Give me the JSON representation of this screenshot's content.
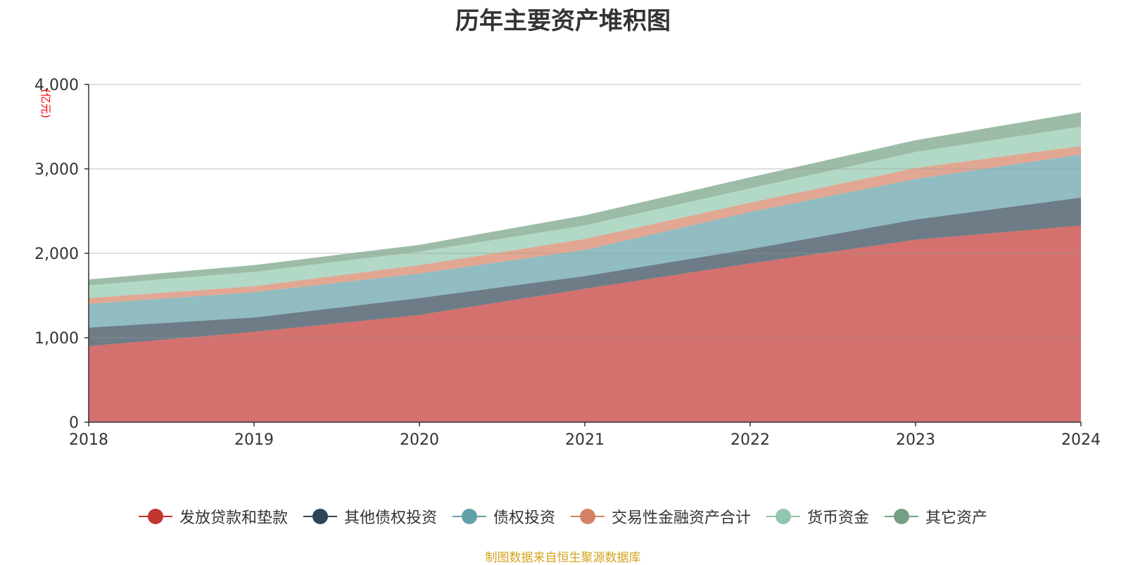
{
  "chart_data": {
    "type": "area",
    "stacked": true,
    "title": "历年主要资产堆积图",
    "ylabel": "(亿元)",
    "xlabel": "",
    "x": [
      "2018",
      "2019",
      "2020",
      "2021",
      "2022",
      "2023",
      "2024"
    ],
    "ylim": [
      0,
      4000
    ],
    "yticks": [
      0,
      1000,
      2000,
      3000,
      4000
    ],
    "ytick_labels": [
      "0",
      "1,000",
      "2,000",
      "3,000",
      "4,000"
    ],
    "grid": true,
    "legend_position": "bottom",
    "series": [
      {
        "name": "发放贷款和垫款",
        "color": "#c23531",
        "values": [
          900,
          1070,
          1270,
          1580,
          1880,
          2160,
          2330
        ]
      },
      {
        "name": "其他债权投资",
        "color": "#2f4554",
        "values": [
          220,
          170,
          200,
          150,
          170,
          240,
          330
        ]
      },
      {
        "name": "债权投资",
        "color": "#61a0a8",
        "values": [
          280,
          300,
          290,
          310,
          440,
          480,
          510
        ]
      },
      {
        "name": "交易性金融资产合计",
        "color": "#d48265",
        "values": [
          70,
          70,
          100,
          130,
          110,
          130,
          100
        ]
      },
      {
        "name": "货币资金",
        "color": "#91c7ae",
        "values": [
          150,
          170,
          160,
          160,
          170,
          190,
          230
        ]
      },
      {
        "name": "其它资产",
        "color": "#749f83",
        "values": [
          70,
          80,
          80,
          120,
          130,
          140,
          170
        ]
      }
    ]
  },
  "source": "制图数据来自恒生聚源数据库"
}
